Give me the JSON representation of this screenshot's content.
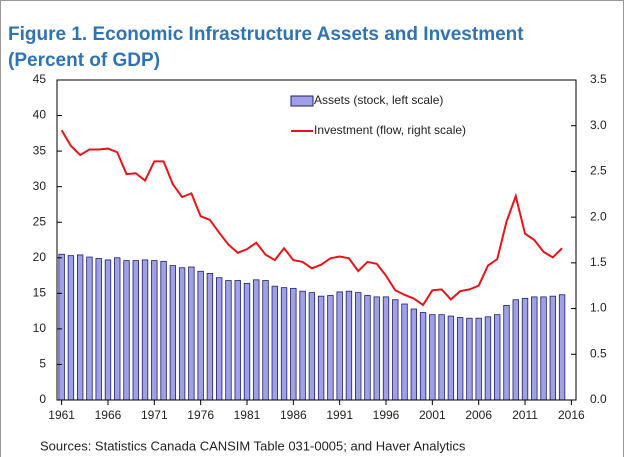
{
  "chart_data": {
    "type": "bar_line",
    "title": "Figure 1. Economic Infrastructure Assets and Investment",
    "subtitle": "(Percent of GDP)",
    "source": "Sources: Statistics Canada CANSIM Table 031-0005; and Haver Analytics",
    "x": [
      1961,
      1962,
      1963,
      1964,
      1965,
      1966,
      1967,
      1968,
      1969,
      1970,
      1971,
      1972,
      1973,
      1974,
      1975,
      1976,
      1977,
      1978,
      1979,
      1980,
      1981,
      1982,
      1983,
      1984,
      1985,
      1986,
      1987,
      1988,
      1989,
      1990,
      1991,
      1992,
      1993,
      1994,
      1995,
      1996,
      1997,
      1998,
      1999,
      2000,
      2001,
      2002,
      2003,
      2004,
      2005,
      2006,
      2007,
      2008,
      2009,
      2010,
      2011,
      2012,
      2013,
      2014,
      2015
    ],
    "series": [
      {
        "name": "Assets (stock, left scale)",
        "type": "bar",
        "color": "#9fa0e6",
        "axis": "y",
        "values": [
          20.5,
          20.3,
          20.4,
          20.1,
          19.9,
          19.7,
          20.0,
          19.6,
          19.6,
          19.7,
          19.6,
          19.5,
          18.9,
          18.6,
          18.7,
          18.1,
          17.8,
          17.2,
          16.8,
          16.8,
          16.4,
          16.9,
          16.8,
          16.0,
          15.8,
          15.7,
          15.3,
          15.1,
          14.6,
          14.7,
          15.2,
          15.3,
          15.1,
          14.7,
          14.5,
          14.5,
          14.1,
          13.5,
          12.8,
          12.3,
          12.0,
          12.0,
          11.8,
          11.6,
          11.5,
          11.5,
          11.7,
          12.0,
          13.3,
          14.1,
          14.3,
          14.5,
          14.5,
          14.6,
          14.8
        ]
      },
      {
        "name": "Investment (flow, right scale)",
        "type": "line",
        "color": "#e8141c",
        "axis": "y2",
        "values": [
          2.95,
          2.78,
          2.68,
          2.74,
          2.74,
          2.75,
          2.71,
          2.47,
          2.48,
          2.4,
          2.61,
          2.61,
          2.36,
          2.22,
          2.26,
          2.01,
          1.97,
          1.83,
          1.7,
          1.61,
          1.65,
          1.72,
          1.59,
          1.53,
          1.66,
          1.53,
          1.51,
          1.44,
          1.48,
          1.55,
          1.57,
          1.55,
          1.41,
          1.51,
          1.49,
          1.36,
          1.2,
          1.15,
          1.11,
          1.04,
          1.2,
          1.21,
          1.1,
          1.19,
          1.21,
          1.25,
          1.47,
          1.54,
          1.95,
          2.23,
          1.82,
          1.75,
          1.62,
          1.56,
          1.66
        ]
      }
    ],
    "xlim": [
      1960.5,
      2016.5
    ],
    "xticks": [
      1961,
      1966,
      1971,
      1976,
      1981,
      1986,
      1991,
      1996,
      2001,
      2006,
      2011,
      2016
    ],
    "ylim": [
      0,
      45
    ],
    "yticks": [
      0,
      5,
      10,
      15,
      20,
      25,
      30,
      35,
      40,
      45
    ],
    "y2lim": [
      0,
      3.5
    ],
    "y2ticks": [
      {
        "value": 0,
        "label": "0.0"
      },
      0.5,
      {
        "value": 1,
        "label": "1.0"
      },
      1.5,
      {
        "value": 2,
        "label": "2.0"
      },
      2.5,
      {
        "value": 3,
        "label": "3.0"
      },
      3.5
    ],
    "grid": false,
    "legend": "top"
  }
}
